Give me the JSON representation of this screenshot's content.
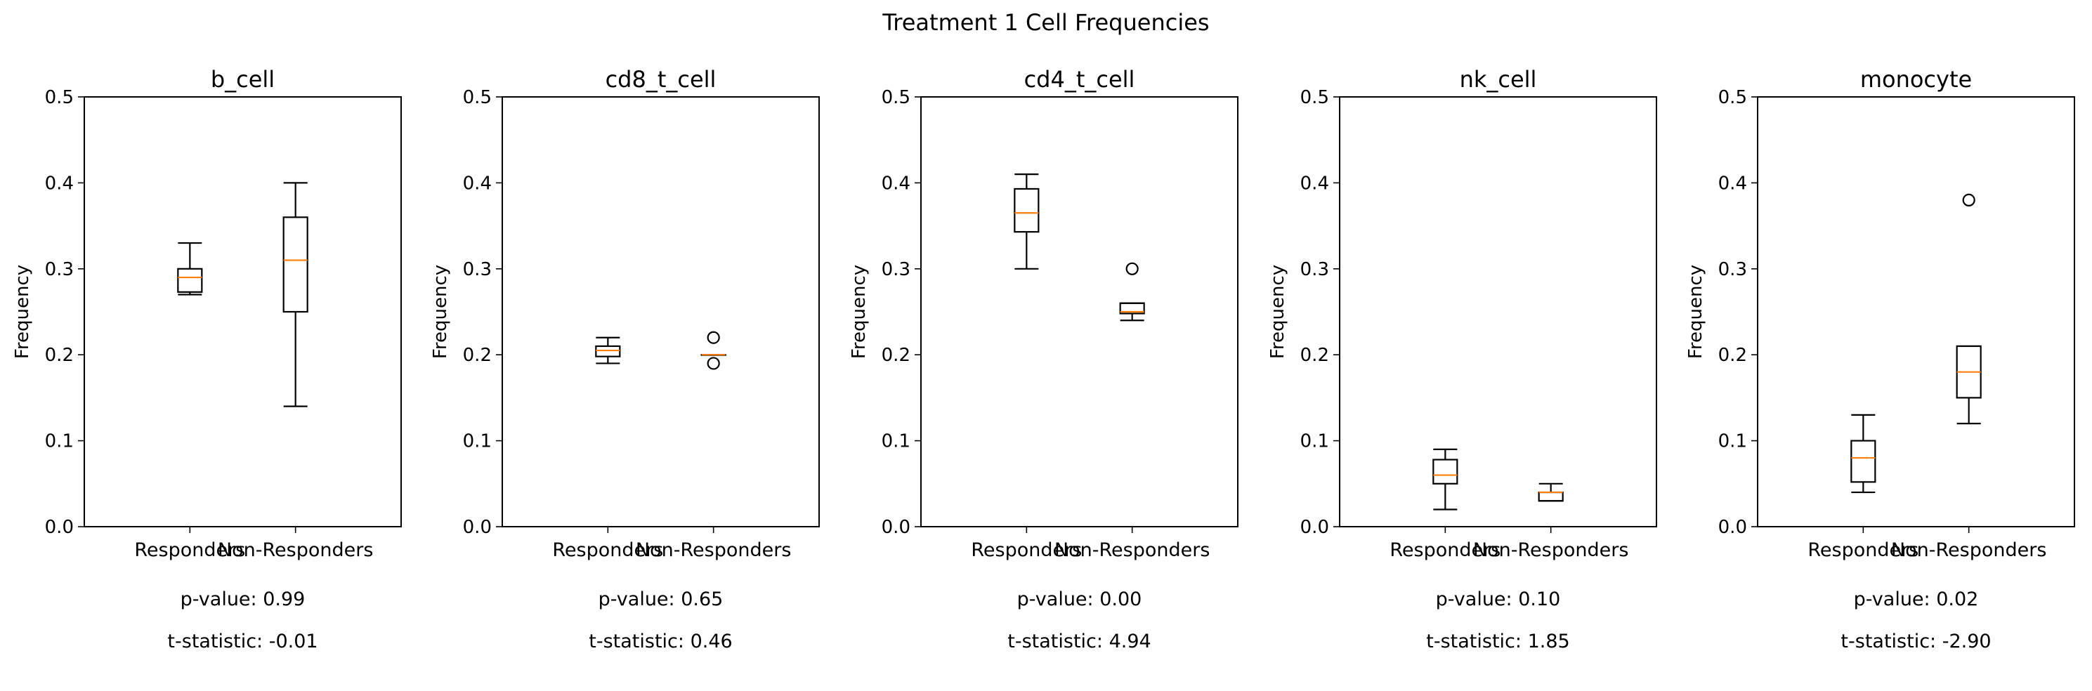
{
  "figure": {
    "title": "Treatment 1 Cell Frequencies"
  },
  "style": {
    "median_color": "#ff7f0e",
    "box_color": "#000000",
    "background": "#ffffff"
  },
  "chart_data": [
    {
      "type": "boxplot",
      "title": "b_cell",
      "ylabel": "Frequency",
      "ylim": [
        0,
        0.5
      ],
      "yticks": [
        "0.0",
        "0.1",
        "0.2",
        "0.3",
        "0.4",
        "0.5"
      ],
      "categories": [
        "Responders",
        "Non-Responders"
      ],
      "boxes": [
        {
          "whislo": 0.27,
          "q1": 0.273,
          "med": 0.29,
          "q3": 0.3,
          "whishi": 0.33,
          "fliers": []
        },
        {
          "whislo": 0.14,
          "q1": 0.25,
          "med": 0.31,
          "q3": 0.36,
          "whishi": 0.4,
          "fliers": []
        }
      ],
      "p_value": "p-value: 0.99",
      "t_statistic": "t-statistic: -0.01"
    },
    {
      "type": "boxplot",
      "title": "cd8_t_cell",
      "ylabel": "Frequency",
      "ylim": [
        0,
        0.5
      ],
      "yticks": [
        "0.0",
        "0.1",
        "0.2",
        "0.3",
        "0.4",
        "0.5"
      ],
      "categories": [
        "Responders",
        "Non-Responders"
      ],
      "boxes": [
        {
          "whislo": 0.19,
          "q1": 0.198,
          "med": 0.205,
          "q3": 0.21,
          "whishi": 0.22,
          "fliers": []
        },
        {
          "whislo": 0.2,
          "q1": 0.2,
          "med": 0.2,
          "q3": 0.2,
          "whishi": 0.2,
          "fliers": [
            0.22,
            0.19
          ]
        }
      ],
      "p_value": "p-value: 0.65",
      "t_statistic": "t-statistic: 0.46"
    },
    {
      "type": "boxplot",
      "title": "cd4_t_cell",
      "ylabel": "Frequency",
      "ylim": [
        0,
        0.5
      ],
      "yticks": [
        "0.0",
        "0.1",
        "0.2",
        "0.3",
        "0.4",
        "0.5"
      ],
      "categories": [
        "Responders",
        "Non-Responders"
      ],
      "boxes": [
        {
          "whislo": 0.3,
          "q1": 0.343,
          "med": 0.365,
          "q3": 0.393,
          "whishi": 0.41,
          "fliers": []
        },
        {
          "whislo": 0.24,
          "q1": 0.248,
          "med": 0.25,
          "q3": 0.26,
          "whishi": 0.26,
          "fliers": [
            0.3
          ]
        }
      ],
      "p_value": "p-value: 0.00",
      "t_statistic": "t-statistic: 4.94"
    },
    {
      "type": "boxplot",
      "title": "nk_cell",
      "ylabel": "Frequency",
      "ylim": [
        0,
        0.5
      ],
      "yticks": [
        "0.0",
        "0.1",
        "0.2",
        "0.3",
        "0.4",
        "0.5"
      ],
      "categories": [
        "Responders",
        "Non-Responders"
      ],
      "boxes": [
        {
          "whislo": 0.02,
          "q1": 0.05,
          "med": 0.06,
          "q3": 0.078,
          "whishi": 0.09,
          "fliers": []
        },
        {
          "whislo": 0.03,
          "q1": 0.03,
          "med": 0.04,
          "q3": 0.04,
          "whishi": 0.05,
          "fliers": []
        }
      ],
      "p_value": "p-value: 0.10",
      "t_statistic": "t-statistic: 1.85"
    },
    {
      "type": "boxplot",
      "title": "monocyte",
      "ylabel": "Frequency",
      "ylim": [
        0,
        0.5
      ],
      "yticks": [
        "0.0",
        "0.1",
        "0.2",
        "0.3",
        "0.4",
        "0.5"
      ],
      "categories": [
        "Responders",
        "Non-Responders"
      ],
      "boxes": [
        {
          "whislo": 0.04,
          "q1": 0.052,
          "med": 0.08,
          "q3": 0.1,
          "whishi": 0.13,
          "fliers": []
        },
        {
          "whislo": 0.12,
          "q1": 0.15,
          "med": 0.18,
          "q3": 0.21,
          "whishi": 0.21,
          "fliers": [
            0.38
          ]
        }
      ],
      "p_value": "p-value: 0.02",
      "t_statistic": "t-statistic: -2.90"
    }
  ]
}
